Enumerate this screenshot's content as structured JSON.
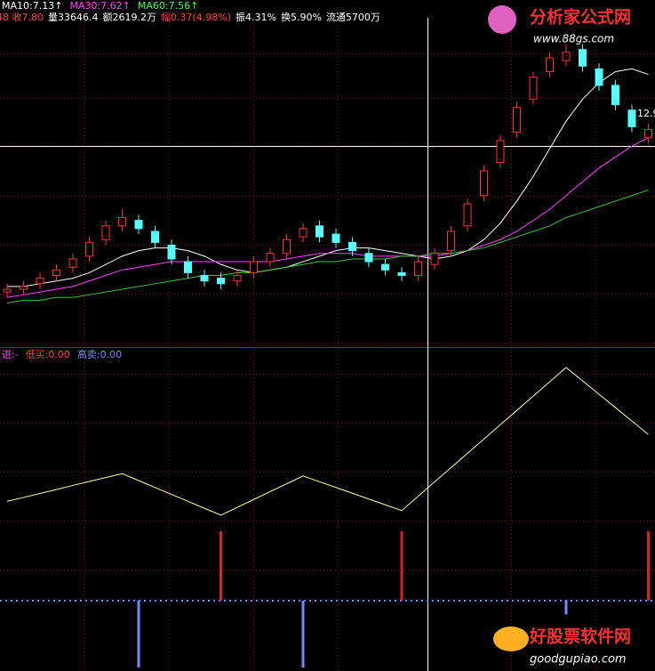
{
  "chart_data": [
    {
      "type": "candlestick",
      "header": [
        "MA10:7.13↑",
        "MA30:7.62↑",
        "MA60:7.56↑"
      ],
      "header_colors": [
        "#ffffff",
        "#ff40ff",
        "#40ff40"
      ],
      "info": [
        "48 收7.80",
        "量33646.4",
        "额2619.2万",
        "幅0.37(4.98%)",
        "振4.31%",
        "换5.90%",
        "流通5700万"
      ],
      "info_colors": [
        "#ff4040",
        "#ffffff",
        "#ffffff",
        "#ff4040",
        "#ffffff",
        "#ffffff",
        "#ffffff"
      ],
      "annotation": "12.9",
      "watermark": {
        "title": "分析家公式网",
        "url": "www.88gs.com"
      },
      "ylim": [
        4.4,
        17.0
      ],
      "open": [
        6.4,
        6.5,
        6.7,
        7.0,
        7.3,
        7.7,
        8.3,
        8.8,
        9.0,
        8.6,
        8.1,
        7.5,
        7.0,
        6.9,
        6.8,
        7.1,
        7.5,
        7.8,
        8.4,
        8.8,
        8.5,
        8.2,
        7.8,
        7.4,
        7.1,
        7.0,
        7.4,
        7.9,
        8.8,
        9.9,
        11.1,
        12.2,
        13.4,
        14.4,
        14.8,
        15.2,
        14.5,
        13.9,
        13.0,
        12.0
      ],
      "high": [
        6.7,
        6.8,
        7.1,
        7.4,
        7.8,
        8.4,
        9.0,
        9.4,
        9.2,
        8.8,
        8.3,
        7.7,
        7.2,
        7.1,
        7.2,
        7.7,
        8.0,
        8.5,
        8.9,
        9.0,
        8.7,
        8.4,
        8.0,
        7.6,
        7.3,
        7.7,
        8.0,
        8.8,
        9.8,
        11.0,
        12.1,
        13.3,
        14.4,
        15.1,
        15.4,
        15.4,
        14.7,
        14.1,
        13.2,
        12.5
      ],
      "low": [
        6.2,
        6.3,
        6.5,
        6.8,
        7.1,
        7.5,
        8.1,
        8.6,
        8.5,
        8.0,
        7.4,
        6.9,
        6.6,
        6.5,
        6.6,
        6.9,
        7.3,
        7.6,
        8.2,
        8.2,
        8.0,
        7.7,
        7.3,
        7.0,
        6.8,
        6.8,
        7.2,
        7.7,
        8.6,
        9.7,
        10.9,
        12.0,
        13.2,
        14.2,
        14.6,
        14.4,
        13.7,
        13.0,
        12.2,
        11.8
      ],
      "close": [
        6.5,
        6.6,
        6.9,
        7.2,
        7.6,
        8.2,
        8.8,
        9.1,
        8.7,
        8.2,
        7.6,
        7.1,
        6.8,
        6.7,
        7.0,
        7.5,
        7.8,
        8.3,
        8.7,
        8.4,
        8.2,
        7.9,
        7.5,
        7.2,
        7.0,
        7.5,
        7.8,
        8.6,
        9.6,
        10.8,
        11.9,
        13.1,
        14.2,
        14.9,
        15.1,
        14.6,
        13.9,
        13.2,
        12.4,
        12.3
      ],
      "up_color": "#ff3232",
      "down_color": "#54ffff",
      "series": [
        {
          "color": "#ffffff",
          "values": [
            6.6,
            6.6,
            6.7,
            6.8,
            6.9,
            7.1,
            7.4,
            7.7,
            7.9,
            8.0,
            8.0,
            7.9,
            7.7,
            7.4,
            7.2,
            7.1,
            7.2,
            7.3,
            7.5,
            7.7,
            7.9,
            8.0,
            8.0,
            7.9,
            7.8,
            7.7,
            7.6,
            7.7,
            7.9,
            8.3,
            8.9,
            9.7,
            10.6,
            11.6,
            12.6,
            13.4,
            14.0,
            14.4,
            14.5,
            14.3
          ]
        },
        {
          "color": "#ff40ff",
          "values": [
            6.2,
            6.3,
            6.4,
            6.5,
            6.6,
            6.8,
            7.0,
            7.2,
            7.3,
            7.4,
            7.5,
            7.5,
            7.5,
            7.5,
            7.5,
            7.5,
            7.5,
            7.6,
            7.7,
            7.8,
            7.8,
            7.8,
            7.7,
            7.7,
            7.7,
            7.7,
            7.7,
            7.8,
            7.9,
            8.1,
            8.3,
            8.6,
            9.0,
            9.4,
            9.9,
            10.4,
            10.9,
            11.3,
            11.7,
            12.0
          ]
        },
        {
          "color": "#40c040",
          "values": [
            6.0,
            6.1,
            6.1,
            6.2,
            6.2,
            6.3,
            6.4,
            6.5,
            6.6,
            6.7,
            6.8,
            6.9,
            7.0,
            7.0,
            7.1,
            7.1,
            7.2,
            7.3,
            7.4,
            7.5,
            7.5,
            7.6,
            7.6,
            7.6,
            7.7,
            7.7,
            7.8,
            7.8,
            7.9,
            8.0,
            8.2,
            8.4,
            8.6,
            8.8,
            9.1,
            9.3,
            9.5,
            9.7,
            9.9,
            10.1
          ]
        }
      ]
    },
    {
      "type": "indicator",
      "header": [
        "进:-",
        "低买:0.00",
        "高卖:0.00"
      ],
      "header_colors": [
        "#ff40ff",
        "#ff4040",
        "#8080ff"
      ],
      "watermark": {
        "title": "好股票软件网",
        "url": "goodgupiao.com"
      },
      "ylim": [
        -29,
        106
      ],
      "series": [
        {
          "type": "line",
          "color": "#ffffa0",
          "values": [
            43,
            44.7,
            46.4,
            48.1,
            49.9,
            51.6,
            53.3,
            55,
            52,
            49,
            46,
            43,
            40,
            37,
            40.4,
            43.8,
            47.2,
            50.6,
            54,
            51.5,
            49,
            46.5,
            44,
            41.5,
            39,
            45.2,
            51.4,
            57.6,
            63.8,
            70,
            76.2,
            82.4,
            88.6,
            94.8,
            101,
            95.2,
            89.4,
            83.6,
            77.8,
            72
          ]
        },
        {
          "type": "bar",
          "color": "#e02020",
          "values": [
            null,
            null,
            null,
            null,
            null,
            null,
            null,
            null,
            null,
            null,
            null,
            null,
            null,
            30,
            null,
            null,
            null,
            null,
            null,
            null,
            null,
            null,
            null,
            null,
            30,
            null,
            null,
            null,
            null,
            null,
            null,
            null,
            null,
            null,
            null,
            null,
            null,
            null,
            null,
            30
          ]
        },
        {
          "type": "bar",
          "color": "#6c8cff",
          "values": [
            null,
            null,
            null,
            null,
            null,
            null,
            null,
            null,
            -29,
            null,
            null,
            null,
            null,
            null,
            null,
            null,
            null,
            null,
            -29,
            null,
            null,
            null,
            null,
            null,
            null,
            null,
            null,
            null,
            null,
            null,
            null,
            null,
            null,
            null,
            -6,
            null,
            null,
            null,
            null,
            null
          ]
        }
      ]
    }
  ]
}
